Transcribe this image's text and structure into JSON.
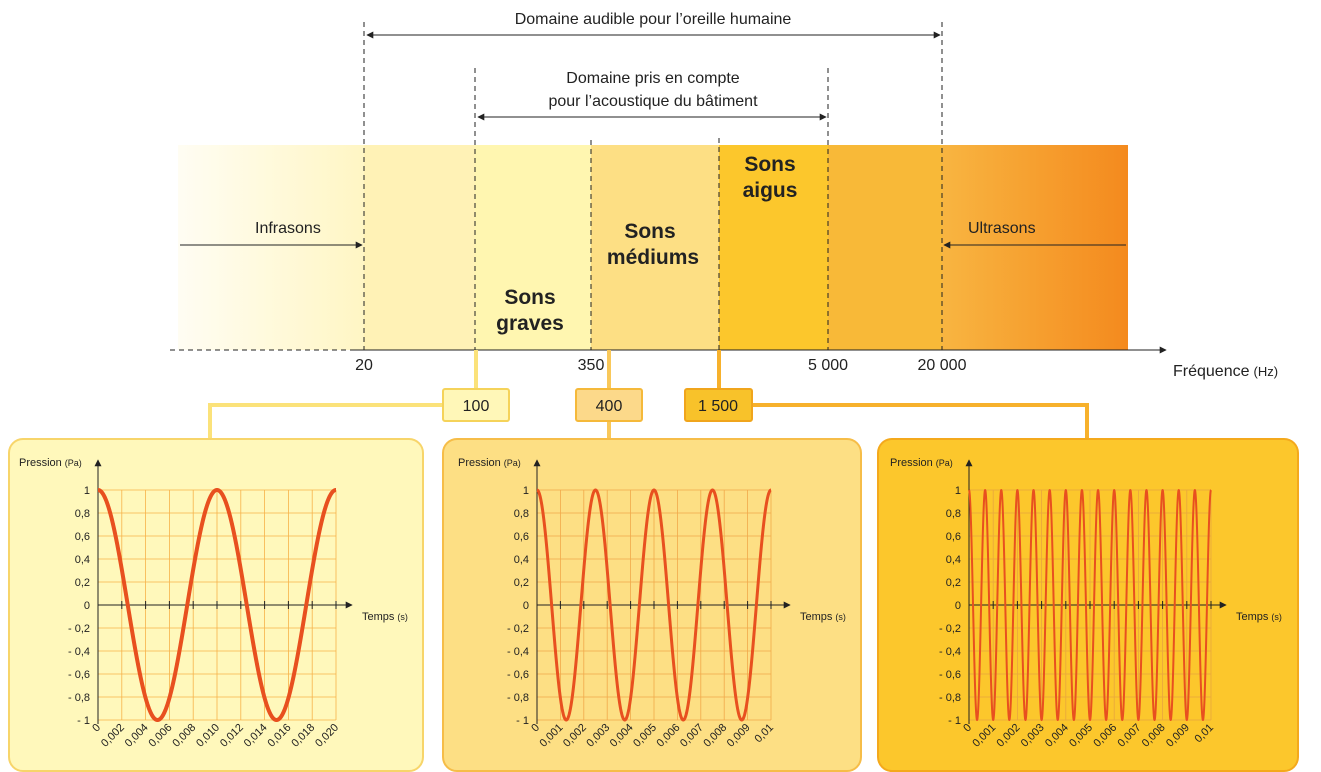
{
  "ranges": {
    "audible": "Domaine audible pour l’oreille humaine",
    "building_line1": "Domaine pris en compte",
    "building_line2": "pour l’acoustique du bâtiment"
  },
  "bands": {
    "infrasons": "Infrasons",
    "ultrasons": "Ultrasons",
    "graves_line1": "Sons",
    "graves_line2": "graves",
    "mediums_line1": "Sons",
    "mediums_line2": "médiums",
    "aigus_line1": "Sons",
    "aigus_line2": "aigus"
  },
  "colors": {
    "graves": "#fff6b3",
    "mediums": "#fddf84",
    "aigus": "#fcc72c",
    "orange_end": "#f48a1e",
    "curve": "#e8501f",
    "grid": "#f5a93a"
  },
  "axis": {
    "label": "Fréquence",
    "unit": "(Hz)",
    "ticks": [
      "20",
      "350",
      "5 000",
      "20 000"
    ]
  },
  "examples": [
    {
      "freq": "100",
      "freq_hz": 100
    },
    {
      "freq": "400",
      "freq_hz": 400
    },
    {
      "freq": "1 500",
      "freq_hz": 1500
    }
  ],
  "chart_data": [
    {
      "type": "line",
      "ylabel": "Pression",
      "yunit": "(Pa)",
      "xlabel": "Temps",
      "xunit": "(s)",
      "ylim": [
        -1,
        1
      ],
      "xlim": [
        0,
        0.02
      ],
      "yticks": [
        "1",
        "0,8",
        "0,6",
        "0,4",
        "0,2",
        "0",
        "- 0,2",
        "- 0,4",
        "- 0,6",
        "- 0,8",
        "- 1"
      ],
      "xticks": [
        "0",
        "0,002",
        "0,004",
        "0,006",
        "0,008",
        "0,010",
        "0,012",
        "0,014",
        "0,016",
        "0,018",
        "0,020"
      ],
      "series": [
        {
          "function": "cos",
          "frequency_hz": 100,
          "amplitude": 1
        }
      ]
    },
    {
      "type": "line",
      "ylabel": "Pression",
      "yunit": "(Pa)",
      "xlabel": "Temps",
      "xunit": "(s)",
      "ylim": [
        -1,
        1
      ],
      "xlim": [
        0,
        0.01
      ],
      "yticks": [
        "1",
        "0,8",
        "0,6",
        "0,4",
        "0,2",
        "0",
        "- 0,2",
        "- 0,4",
        "- 0,6",
        "- 0,8",
        "- 1"
      ],
      "xticks": [
        "0",
        "0,001",
        "0,002",
        "0,003",
        "0,004",
        "0,005",
        "0,006",
        "0,007",
        "0,008",
        "0,009",
        "0,01"
      ],
      "series": [
        {
          "function": "cos",
          "frequency_hz": 400,
          "amplitude": 1
        }
      ]
    },
    {
      "type": "line",
      "ylabel": "Pression",
      "yunit": "(Pa)",
      "xlabel": "Temps",
      "xunit": "(s)",
      "ylim": [
        -1,
        1
      ],
      "xlim": [
        0,
        0.01
      ],
      "yticks": [
        "1",
        "0,8",
        "0,6",
        "0,4",
        "0,2",
        "0",
        "- 0,2",
        "- 0,4",
        "- 0,6",
        "- 0,8",
        "- 1"
      ],
      "xticks": [
        "0",
        "0,001",
        "0,002",
        "0,003",
        "0,004",
        "0,005",
        "0,006",
        "0,007",
        "0,008",
        "0,009",
        "0,01"
      ],
      "series": [
        {
          "function": "cos",
          "frequency_hz": 1500,
          "amplitude": 1
        }
      ]
    }
  ]
}
